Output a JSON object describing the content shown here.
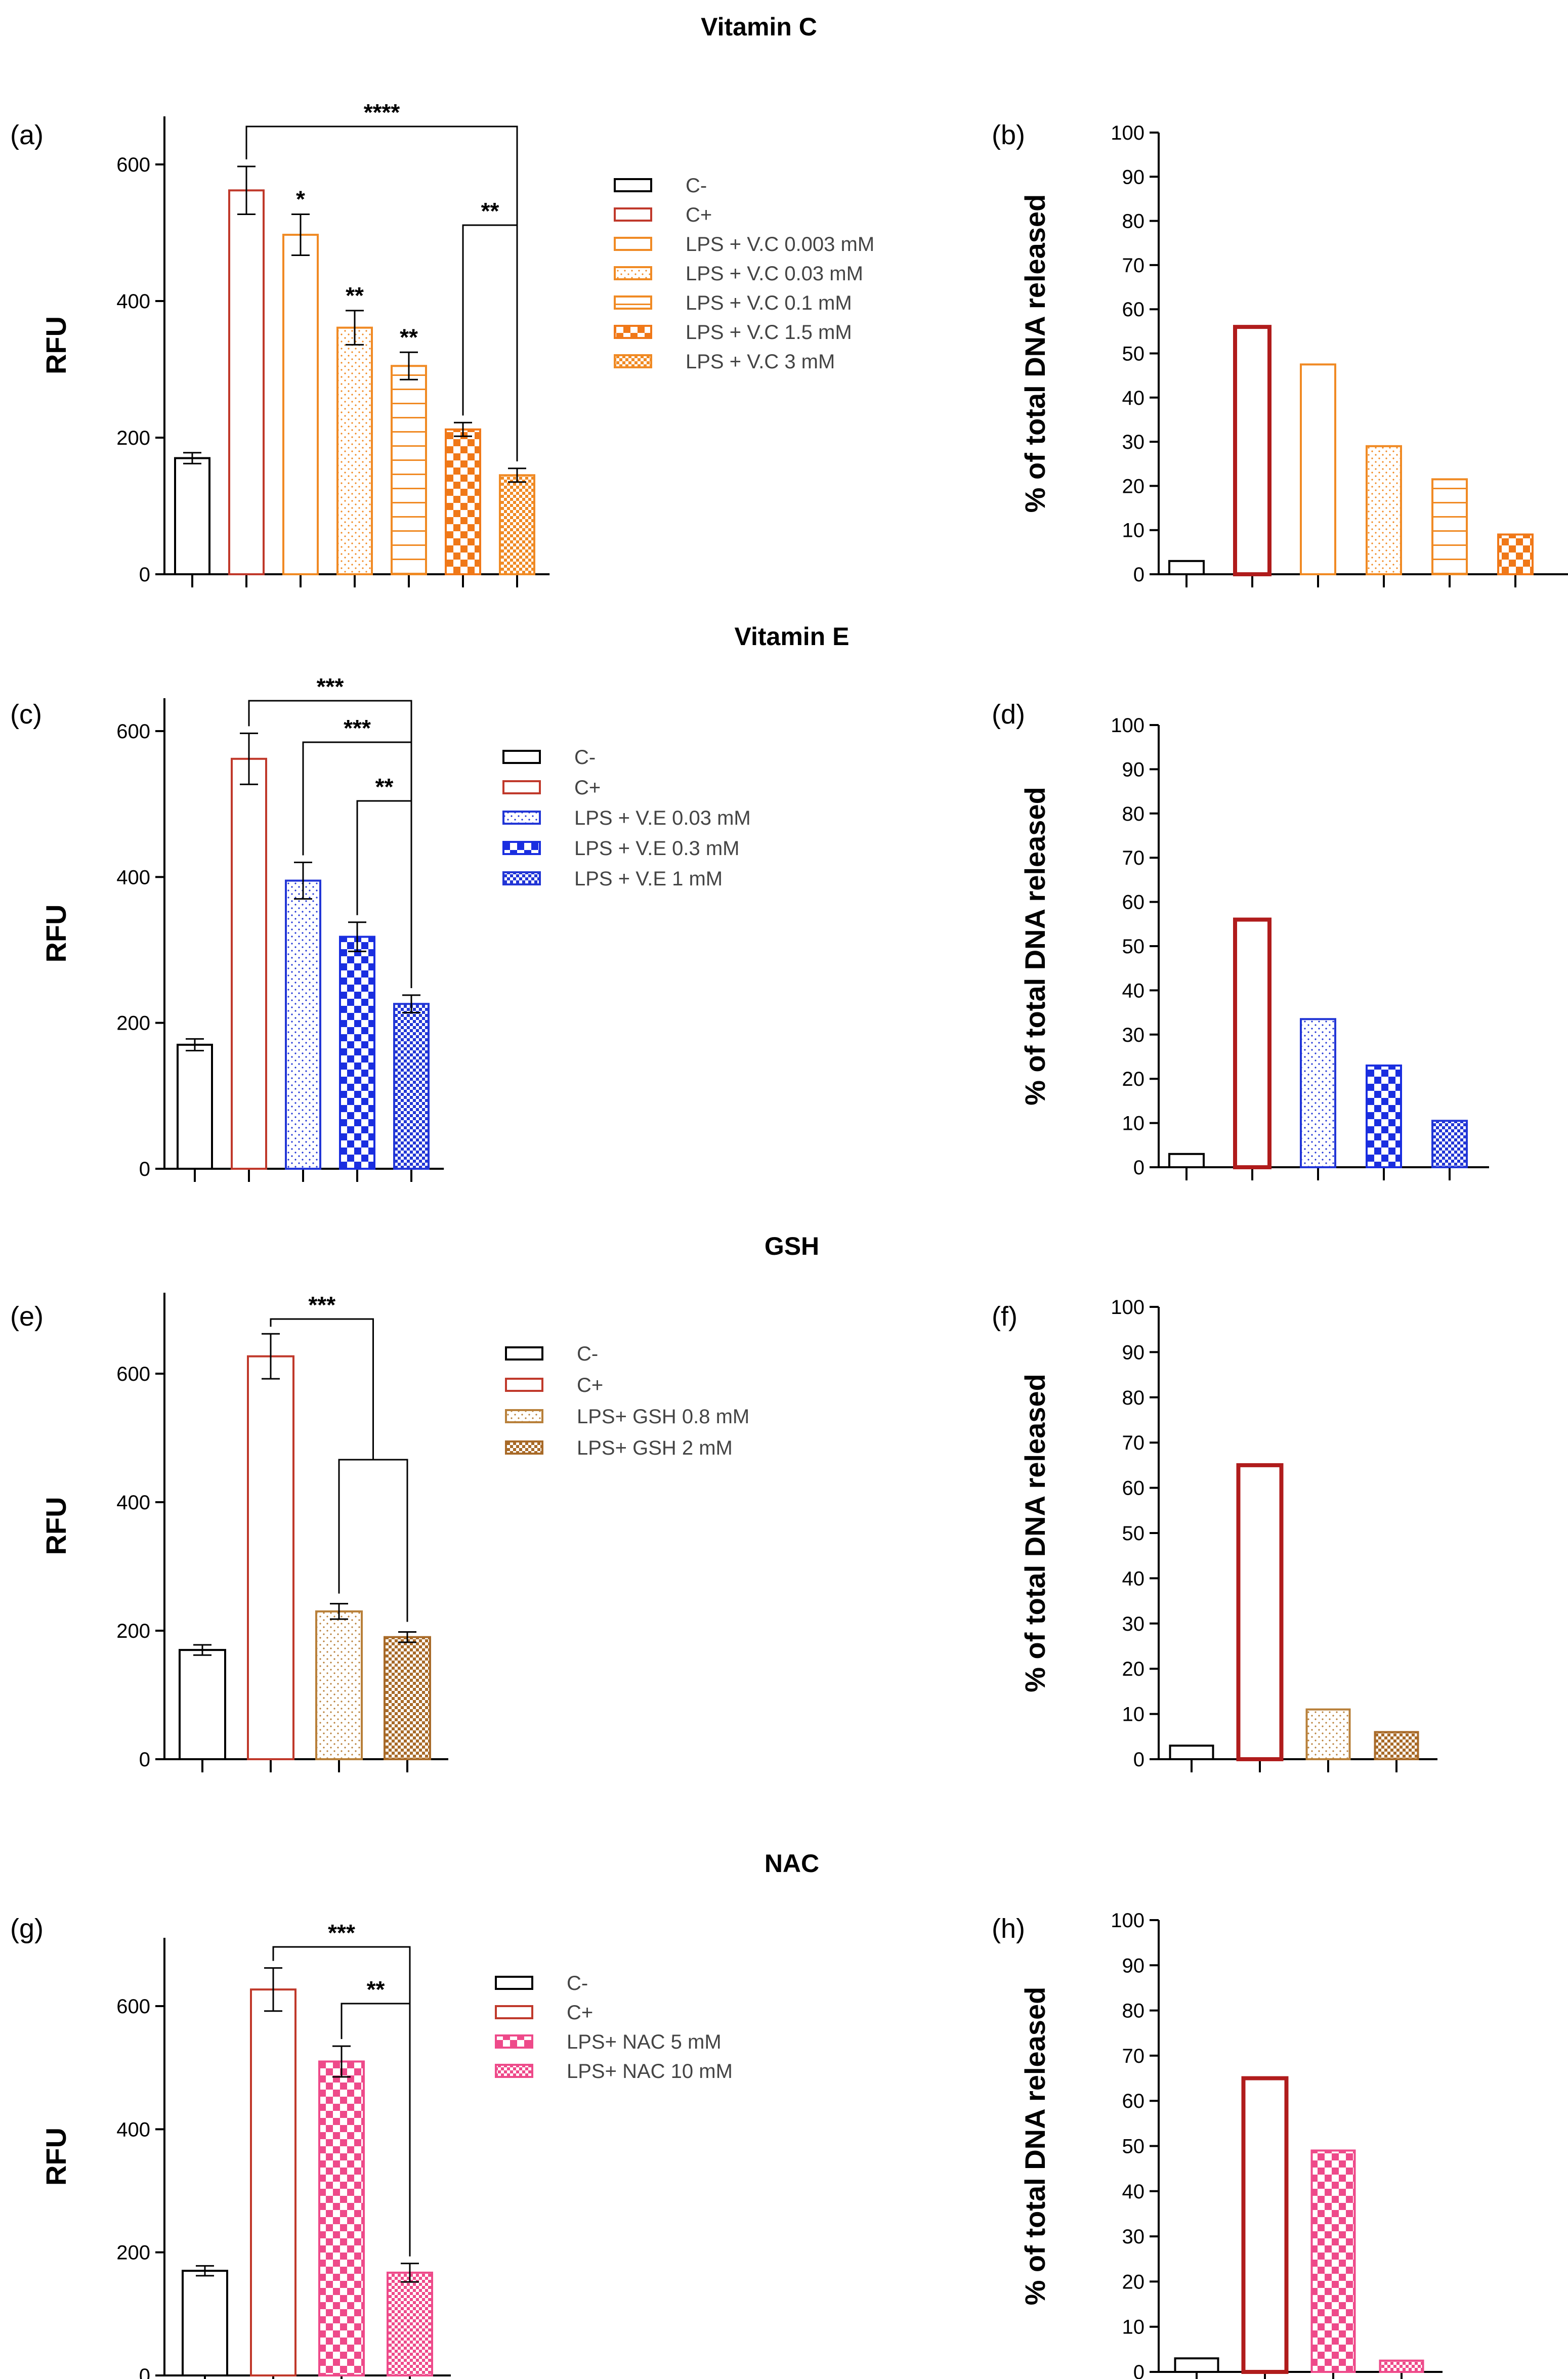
{
  "chart_data": [
    {
      "panel": "a",
      "section_title": "Vitamin C",
      "type": "bar",
      "ylabel": "RFU",
      "ylim": [
        0,
        650
      ],
      "yticks": [
        0,
        200,
        400,
        600
      ],
      "categories": [
        "C-",
        "C+",
        "LPS + V.C 0.003 mM",
        "LPS + V.C 0.03 mM",
        "LPS + V.C 0.1 mM",
        "LPS + V.C 1.5 mM",
        "LPS + V.C 3 mM"
      ],
      "values": [
        170,
        562,
        497,
        361,
        305,
        212,
        145
      ],
      "errors": [
        8,
        35,
        30,
        25,
        20,
        10,
        10
      ],
      "colors": [
        "#000000",
        "#c0392b",
        "#f08a24",
        "#f08a24",
        "#f08a24",
        "#f07818",
        "#f08a24"
      ],
      "patterns": [
        "none",
        "none",
        "none",
        "dots",
        "hlines",
        "checker",
        "checkfine"
      ],
      "stars": [
        "",
        "",
        "*",
        "**",
        "**",
        "",
        ""
      ],
      "brackets": [
        {
          "from": 1,
          "to": 6,
          "label": "****"
        },
        {
          "from": 5,
          "to": 6,
          "label": "**"
        }
      ],
      "legend": [
        "C-",
        "C+",
        "LPS + V.C 0.003 mM",
        "LPS + V.C 0.03 mM",
        "LPS + V.C 0.1 mM",
        "LPS + V.C 1.5 mM",
        "LPS + V.C 3 mM"
      ]
    },
    {
      "panel": "b",
      "type": "bar",
      "ylabel": "% of total DNA released",
      "ylim": [
        0,
        100
      ],
      "yticks": [
        0,
        10,
        20,
        30,
        40,
        50,
        60,
        70,
        80,
        90,
        100
      ],
      "nticks": 7,
      "values": [
        3,
        56,
        47.5,
        29,
        21.5,
        9
      ],
      "colors": [
        "#000000",
        "#b01c1c",
        "#f08a24",
        "#f08a24",
        "#f08a24",
        "#f07818"
      ],
      "patterns": [
        "none",
        "none",
        "none",
        "dots",
        "hlines",
        "checker"
      ],
      "thick": [
        false,
        true,
        false,
        false,
        false,
        false
      ]
    },
    {
      "panel": "c",
      "section_title": "Vitamin E",
      "type": "bar",
      "ylabel": "RFU",
      "ylim": [
        0,
        650
      ],
      "yticks": [
        0,
        200,
        400,
        600
      ],
      "categories": [
        "C-",
        "C+",
        "LPS + V.E 0.03 mM",
        "LPS + V.E 0.3 mM",
        "LPS + V.E 1 mM"
      ],
      "values": [
        170,
        562,
        395,
        318,
        226
      ],
      "errors": [
        8,
        35,
        25,
        20,
        12
      ],
      "colors": [
        "#000000",
        "#c0392b",
        "#2236d6",
        "#1a2ee0",
        "#2236d6"
      ],
      "patterns": [
        "none",
        "none",
        "dots",
        "checker",
        "checkfine"
      ],
      "stars": [
        "",
        "",
        "",
        "",
        ""
      ],
      "brackets": [
        {
          "from": 1,
          "to": 4,
          "label": "***"
        },
        {
          "from": 2,
          "to": 4,
          "label": "***"
        },
        {
          "from": 3,
          "to": 4,
          "label": "**"
        }
      ],
      "legend": [
        "C-",
        "C+",
        "LPS + V.E 0.03 mM",
        "LPS + V.E 0.3 mM",
        "LPS + V.E 1 mM"
      ]
    },
    {
      "panel": "d",
      "type": "bar",
      "ylabel": "% of total DNA released",
      "ylim": [
        0,
        100
      ],
      "yticks": [
        0,
        10,
        20,
        30,
        40,
        50,
        60,
        70,
        80,
        90,
        100
      ],
      "nticks": 5,
      "values": [
        3,
        56,
        33.5,
        23,
        10.5
      ],
      "colors": [
        "#000000",
        "#b01c1c",
        "#2236d6",
        "#1a2ee0",
        "#2236d6"
      ],
      "patterns": [
        "none",
        "none",
        "dots",
        "checker",
        "checkfine"
      ],
      "thick": [
        false,
        true,
        false,
        false,
        false
      ]
    },
    {
      "panel": "e",
      "section_title": "GSH",
      "type": "bar",
      "ylabel": "RFU",
      "ylim": [
        0,
        700
      ],
      "yticks": [
        0,
        200,
        400,
        600
      ],
      "categories": [
        "C-",
        "C+",
        "LPS+ GSH 0.8 mM",
        "LPS+ GSH 2 mM"
      ],
      "values": [
        170,
        627,
        230,
        190
      ],
      "errors": [
        8,
        35,
        12,
        8
      ],
      "colors": [
        "#000000",
        "#c0392b",
        "#b8803a",
        "#a86a28"
      ],
      "patterns": [
        "none",
        "none",
        "dots",
        "checkfine"
      ],
      "stars": [
        "",
        "",
        "",
        ""
      ],
      "brackets": [
        {
          "from": 1,
          "to": 2.5,
          "label": "***",
          "nested": [
            2,
            3
          ]
        }
      ],
      "legend": [
        "C-",
        "C+",
        "LPS+ GSH 0.8 mM",
        "LPS+ GSH 2 mM"
      ]
    },
    {
      "panel": "f",
      "type": "bar",
      "ylabel": "% of total DNA released",
      "ylim": [
        0,
        100
      ],
      "yticks": [
        0,
        10,
        20,
        30,
        40,
        50,
        60,
        70,
        80,
        90,
        100
      ],
      "nticks": 4,
      "values": [
        3,
        65,
        11,
        6
      ],
      "colors": [
        "#000000",
        "#b01c1c",
        "#b8803a",
        "#a86a28"
      ],
      "patterns": [
        "none",
        "none",
        "dots",
        "checkfine"
      ],
      "thick": [
        false,
        true,
        false,
        false
      ]
    },
    {
      "panel": "g",
      "section_title": "NAC",
      "type": "bar",
      "ylabel": "RFU",
      "ylim": [
        0,
        700
      ],
      "yticks": [
        0,
        200,
        400,
        600
      ],
      "categories": [
        "C-",
        "C+",
        "LPS+ NAC 5 mM",
        "LPS+ NAC 10 mM"
      ],
      "values": [
        170,
        627,
        510,
        167
      ],
      "errors": [
        8,
        35,
        25,
        15
      ],
      "colors": [
        "#000000",
        "#c0392b",
        "#ee4a8a",
        "#ee4a8a"
      ],
      "patterns": [
        "none",
        "none",
        "checker",
        "checkfine"
      ],
      "stars": [
        "",
        "",
        "",
        ""
      ],
      "brackets": [
        {
          "from": 1,
          "to": 3,
          "label": "***"
        },
        {
          "from": 2,
          "to": 3,
          "label": "**"
        }
      ],
      "legend": [
        "C-",
        "C+",
        "LPS+ NAC 5 mM",
        "LPS+ NAC 10 mM"
      ]
    },
    {
      "panel": "h",
      "type": "bar",
      "ylabel": "% of total DNA released",
      "ylim": [
        0,
        100
      ],
      "yticks": [
        0,
        10,
        20,
        30,
        40,
        50,
        60,
        70,
        80,
        90,
        100
      ],
      "nticks": 4,
      "values": [
        3,
        65,
        49,
        2.5
      ],
      "colors": [
        "#000000",
        "#b01c1c",
        "#ee4a8a",
        "#ee4a8a"
      ],
      "patterns": [
        "none",
        "none",
        "checker",
        "checkfine"
      ],
      "thick": [
        false,
        true,
        false,
        false
      ]
    }
  ]
}
